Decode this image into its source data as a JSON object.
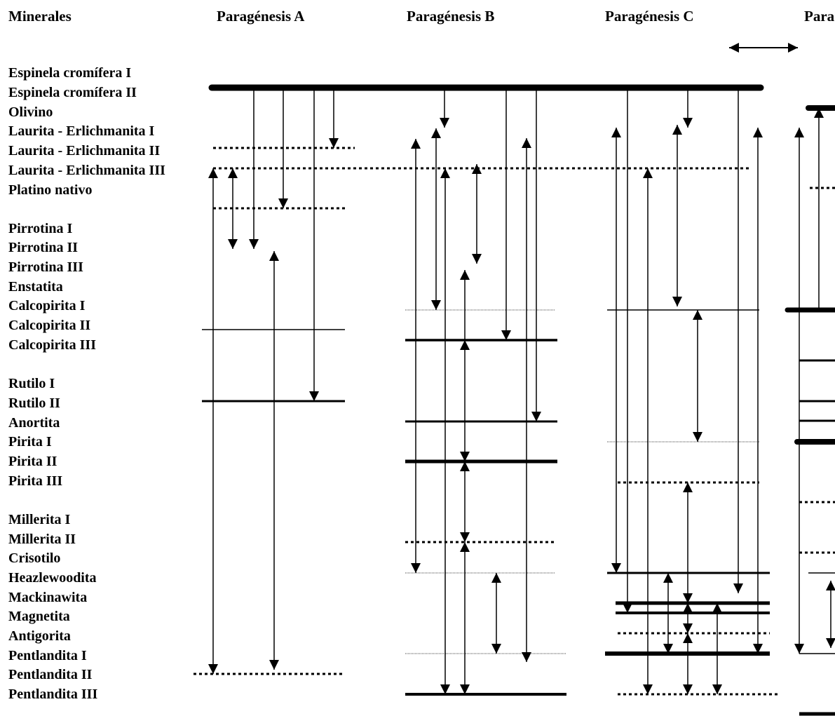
{
  "headers": {
    "minerales": "Minerales",
    "paragenesis_a": "Paragénesis A",
    "paragenesis_b": "Paragénesis B",
    "paragenesis_c": "Paragénesis C",
    "paragenesis_d_partial": "Para"
  },
  "minerals": [
    "Espinela cromífera I",
    "Espinela cromífera II",
    "Olivino",
    "Laurita - Erlichmanita I",
    "Laurita - Erlichmanita II",
    "Laurita - Erlichmanita III",
    "Platino nativo",
    "Pirrotina I",
    "Pirrotina II",
    "Pirrotina III",
    "Enstatita",
    "Calcopirita I",
    "Calcopirita II",
    "Calcopirita III",
    "Rutilo I",
    "Rutilo II",
    "Anortita",
    "Pirita I",
    "Pirita II",
    "Pirita III",
    "Millerita I",
    "Millerita II",
    "Crisotilo",
    "Heazlewoodita",
    "Mackinawita",
    "Magnetita",
    "Antigorita",
    "Pentlandita I",
    "Pentlandita II",
    "Pentlandita III"
  ],
  "colors": {
    "ink": "#000000"
  }
}
